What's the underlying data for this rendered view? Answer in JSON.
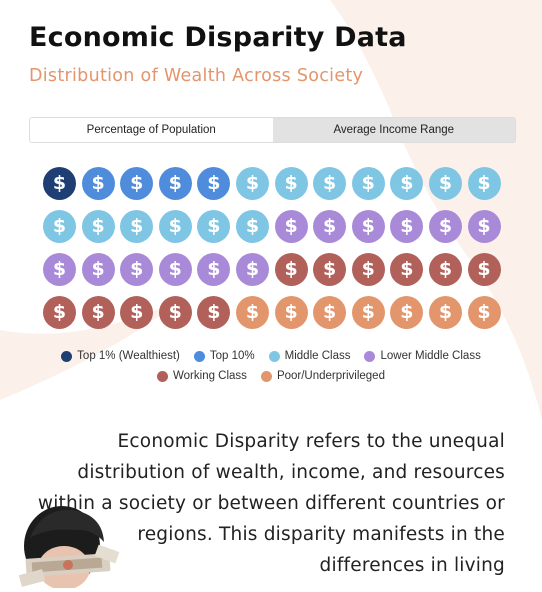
{
  "header": {
    "title": "Economic Disparity Data",
    "subtitle": "Distribution of Wealth Across Society"
  },
  "tabs": [
    {
      "label": "Percentage of Population",
      "active": true
    },
    {
      "label": "Average Income Range",
      "active": false
    }
  ],
  "coin_symbol": "$",
  "categories": [
    {
      "label": "Top 1% (Wealthiest)",
      "color": "#1f3f74",
      "count": 1
    },
    {
      "label": "Top 10%",
      "color": "#4f8ddc",
      "count": 4
    },
    {
      "label": "Middle Class",
      "color": "#7ec6e3",
      "count": 13
    },
    {
      "label": "Lower Middle Class",
      "color": "#a98ad9",
      "count": 12
    },
    {
      "label": "Working Class",
      "color": "#b1605a",
      "count": 11
    },
    {
      "label": "Poor/Underprivileged",
      "color": "#e3956c",
      "count": 7
    }
  ],
  "description": "Economic Disparity refers to the unequal distribution of wealth, income, and resources within a society or between different countries or regions. This disparity manifests in the differences in living"
}
